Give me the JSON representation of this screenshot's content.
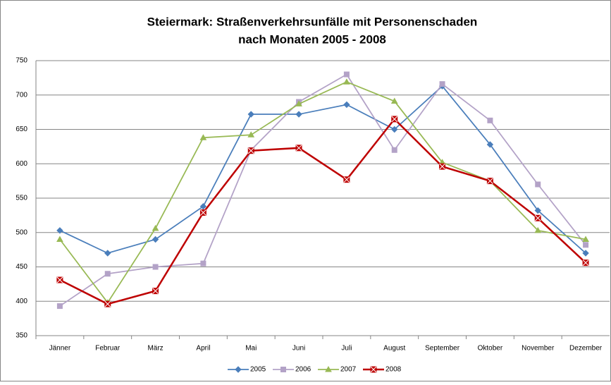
{
  "chart_data": {
    "type": "line",
    "title": [
      "Steiermark: Straßenverkehrsunfälle mit Personenschaden",
      "nach Monaten 2005 - 2008"
    ],
    "categories": [
      "Jänner",
      "Februar",
      "März",
      "April",
      "Mai",
      "Juni",
      "Juli",
      "August",
      "September",
      "Oktober",
      "November",
      "Dezember"
    ],
    "series": [
      {
        "name": "2005",
        "color": "#4a7ebb",
        "marker": "diamond",
        "values": [
          503,
          470,
          490,
          538,
          672,
          672,
          686,
          650,
          713,
          628,
          532,
          470
        ]
      },
      {
        "name": "2006",
        "color": "#b3a2c7",
        "marker": "square",
        "values": [
          393,
          440,
          450,
          455,
          620,
          690,
          730,
          620,
          716,
          663,
          570,
          482
        ]
      },
      {
        "name": "2007",
        "color": "#98b954",
        "marker": "triangle",
        "values": [
          490,
          398,
          506,
          638,
          642,
          687,
          719,
          691,
          602,
          575,
          503,
          490
        ]
      },
      {
        "name": "2008",
        "color": "#be0000",
        "marker": "x-square",
        "values": [
          431,
          396,
          415,
          529,
          619,
          623,
          577,
          665,
          596,
          575,
          521,
          456
        ]
      }
    ],
    "ylim": [
      350,
      750
    ],
    "yticks": [
      350,
      400,
      450,
      500,
      550,
      600,
      650,
      700,
      750
    ],
    "grid": true,
    "legend": "bottom"
  }
}
